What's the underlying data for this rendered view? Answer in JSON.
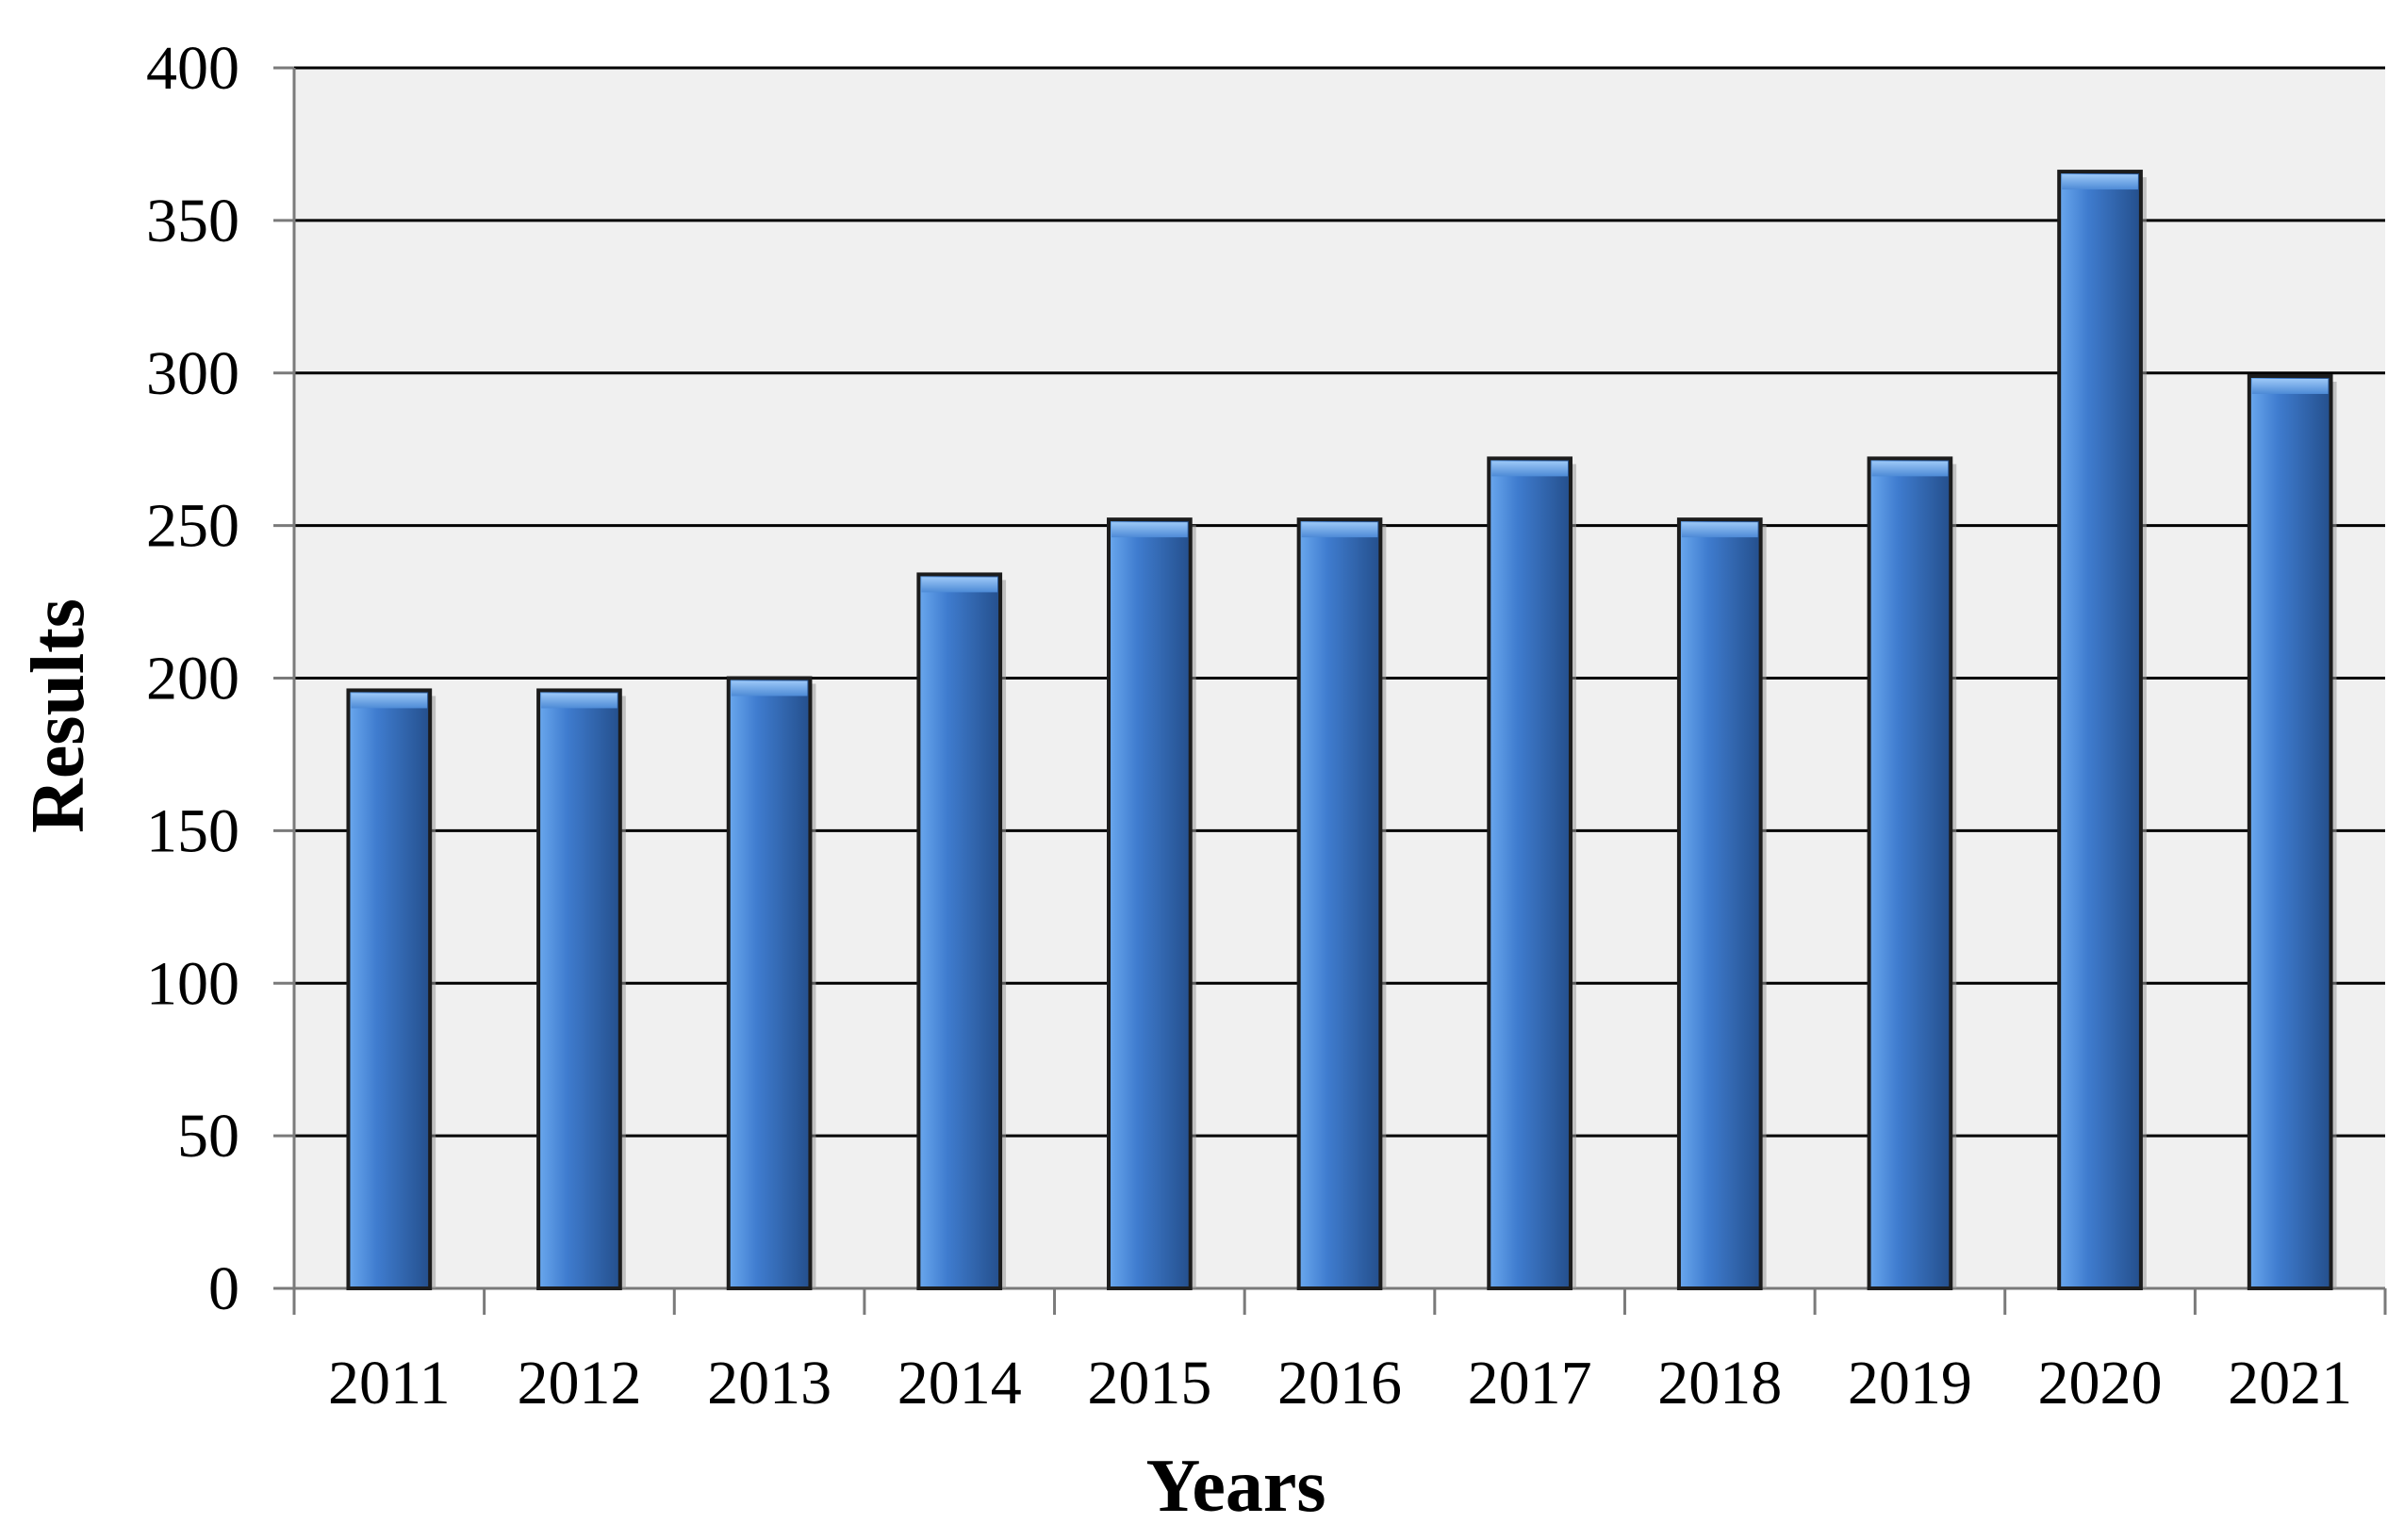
{
  "chart_data": {
    "type": "bar",
    "title": "",
    "xlabel": "Years",
    "ylabel": "Results",
    "categories": [
      "2011",
      "2012",
      "2013",
      "2014",
      "2015",
      "2016",
      "2017",
      "2018",
      "2019",
      "2020",
      "2021"
    ],
    "values": [
      196,
      196,
      200,
      234,
      252,
      252,
      272,
      252,
      272,
      366,
      299
    ],
    "ylim": [
      0,
      400
    ],
    "yticks": [
      "0",
      "50",
      "100",
      "150",
      "200",
      "250",
      "300",
      "350",
      "400"
    ],
    "grid": true,
    "legend": "none",
    "colors": {
      "bar_light": "#6aa8ee",
      "bar_mid": "#3f7ccf",
      "bar_dark": "#244f8c",
      "bar_outline": "#1c1c1c",
      "plot_background": "#f0f0f0",
      "gridline": "#000000"
    }
  }
}
